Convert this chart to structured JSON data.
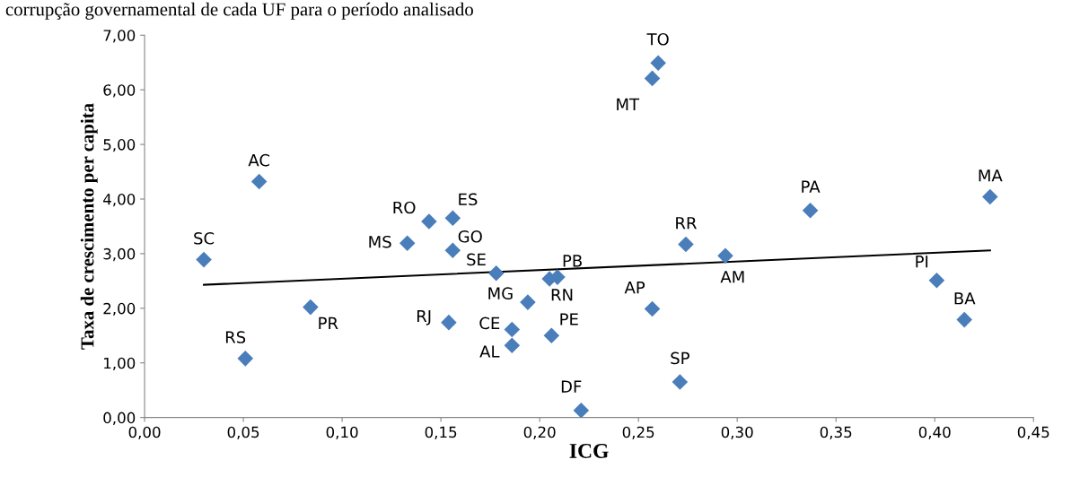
{
  "chart_data": {
    "type": "scatter",
    "xlabel": "ICG",
    "ylabel": "Taxa de crescimento per capita",
    "xlim": [
      0,
      0.45
    ],
    "ylim": [
      0,
      7
    ],
    "xticks": [
      {
        "value": 0,
        "label": "0,00"
      },
      {
        "value": 0.05,
        "label": "0,05"
      },
      {
        "value": 0.1,
        "label": "0,10"
      },
      {
        "value": 0.15,
        "label": "0,15"
      },
      {
        "value": 0.2,
        "label": "0,20"
      },
      {
        "value": 0.25,
        "label": "0,25"
      },
      {
        "value": 0.3,
        "label": "0,30"
      },
      {
        "value": 0.35,
        "label": "0,35"
      },
      {
        "value": 0.4,
        "label": "0,40"
      },
      {
        "value": 0.45,
        "label": "0,45"
      }
    ],
    "yticks": [
      {
        "value": 0,
        "label": "0,00"
      },
      {
        "value": 1,
        "label": "1,00"
      },
      {
        "value": 2,
        "label": "2,00"
      },
      {
        "value": 3,
        "label": "3,00"
      },
      {
        "value": 4,
        "label": "4,00"
      },
      {
        "value": 5,
        "label": "5,00"
      },
      {
        "value": 6,
        "label": "6,00"
      },
      {
        "value": 7,
        "label": "7,00"
      }
    ],
    "grid": false,
    "legend": false,
    "series": [
      {
        "marker": "diamond",
        "color": "#4a7ebb",
        "x": [
          0.03,
          0.058,
          0.051,
          0.084,
          0.133,
          0.144,
          0.156,
          0.156,
          0.154,
          0.178,
          0.194,
          0.186,
          0.186,
          0.205,
          0.209,
          0.206,
          0.221,
          0.257,
          0.26,
          0.257,
          0.274,
          0.294,
          0.271,
          0.337,
          0.428,
          0.401,
          0.415
        ],
        "values": [
          2.89,
          4.32,
          1.08,
          2.02,
          3.19,
          3.59,
          3.65,
          3.06,
          1.74,
          2.64,
          2.11,
          1.61,
          1.32,
          2.54,
          2.57,
          1.5,
          0.13,
          6.21,
          6.49,
          1.99,
          3.17,
          2.96,
          0.65,
          3.79,
          4.04,
          2.51,
          1.79
        ]
      },
      {
        "type": "line",
        "color": "#000000",
        "x": [
          0.03,
          0.428
        ],
        "values": [
          2.43,
          3.06
        ]
      }
    ],
    "annotations": [
      "corrupção governamental de cada UF para o período analisado",
      {
        "text": "SC",
        "x": 0.03,
        "y": 2.89
      },
      {
        "text": "AC",
        "x": 0.058,
        "y": 4.32
      },
      {
        "text": "RS",
        "x": 0.051,
        "y": 1.08
      },
      {
        "text": "PR",
        "x": 0.084,
        "y": 2.02
      },
      {
        "text": "MS",
        "x": 0.133,
        "y": 3.19
      },
      {
        "text": "RO",
        "x": 0.144,
        "y": 3.59
      },
      {
        "text": "ES",
        "x": 0.156,
        "y": 3.65
      },
      {
        "text": "GO",
        "x": 0.156,
        "y": 3.06
      },
      {
        "text": "RJ",
        "x": 0.154,
        "y": 1.74
      },
      {
        "text": "SE",
        "x": 0.178,
        "y": 2.64
      },
      {
        "text": "MG",
        "x": 0.194,
        "y": 2.11
      },
      {
        "text": "CE",
        "x": 0.186,
        "y": 1.61
      },
      {
        "text": "AL",
        "x": 0.186,
        "y": 1.32
      },
      {
        "text": "RN",
        "x": 0.205,
        "y": 2.54
      },
      {
        "text": "PB",
        "x": 0.209,
        "y": 2.57
      },
      {
        "text": "PE",
        "x": 0.206,
        "y": 1.5
      },
      {
        "text": "DF",
        "x": 0.221,
        "y": 0.13
      },
      {
        "text": "MT",
        "x": 0.257,
        "y": 6.21
      },
      {
        "text": "TO",
        "x": 0.26,
        "y": 6.49
      },
      {
        "text": "AP",
        "x": 0.257,
        "y": 1.99
      },
      {
        "text": "RR",
        "x": 0.274,
        "y": 3.17
      },
      {
        "text": "AM",
        "x": 0.294,
        "y": 2.96
      },
      {
        "text": "SP",
        "x": 0.271,
        "y": 0.65
      },
      {
        "text": "PA",
        "x": 0.337,
        "y": 3.79
      },
      {
        "text": "MA",
        "x": 0.428,
        "y": 4.04
      },
      {
        "text": "PI",
        "x": 0.401,
        "y": 2.51
      },
      {
        "text": "BA",
        "x": 0.415,
        "y": 1.79
      }
    ]
  }
}
